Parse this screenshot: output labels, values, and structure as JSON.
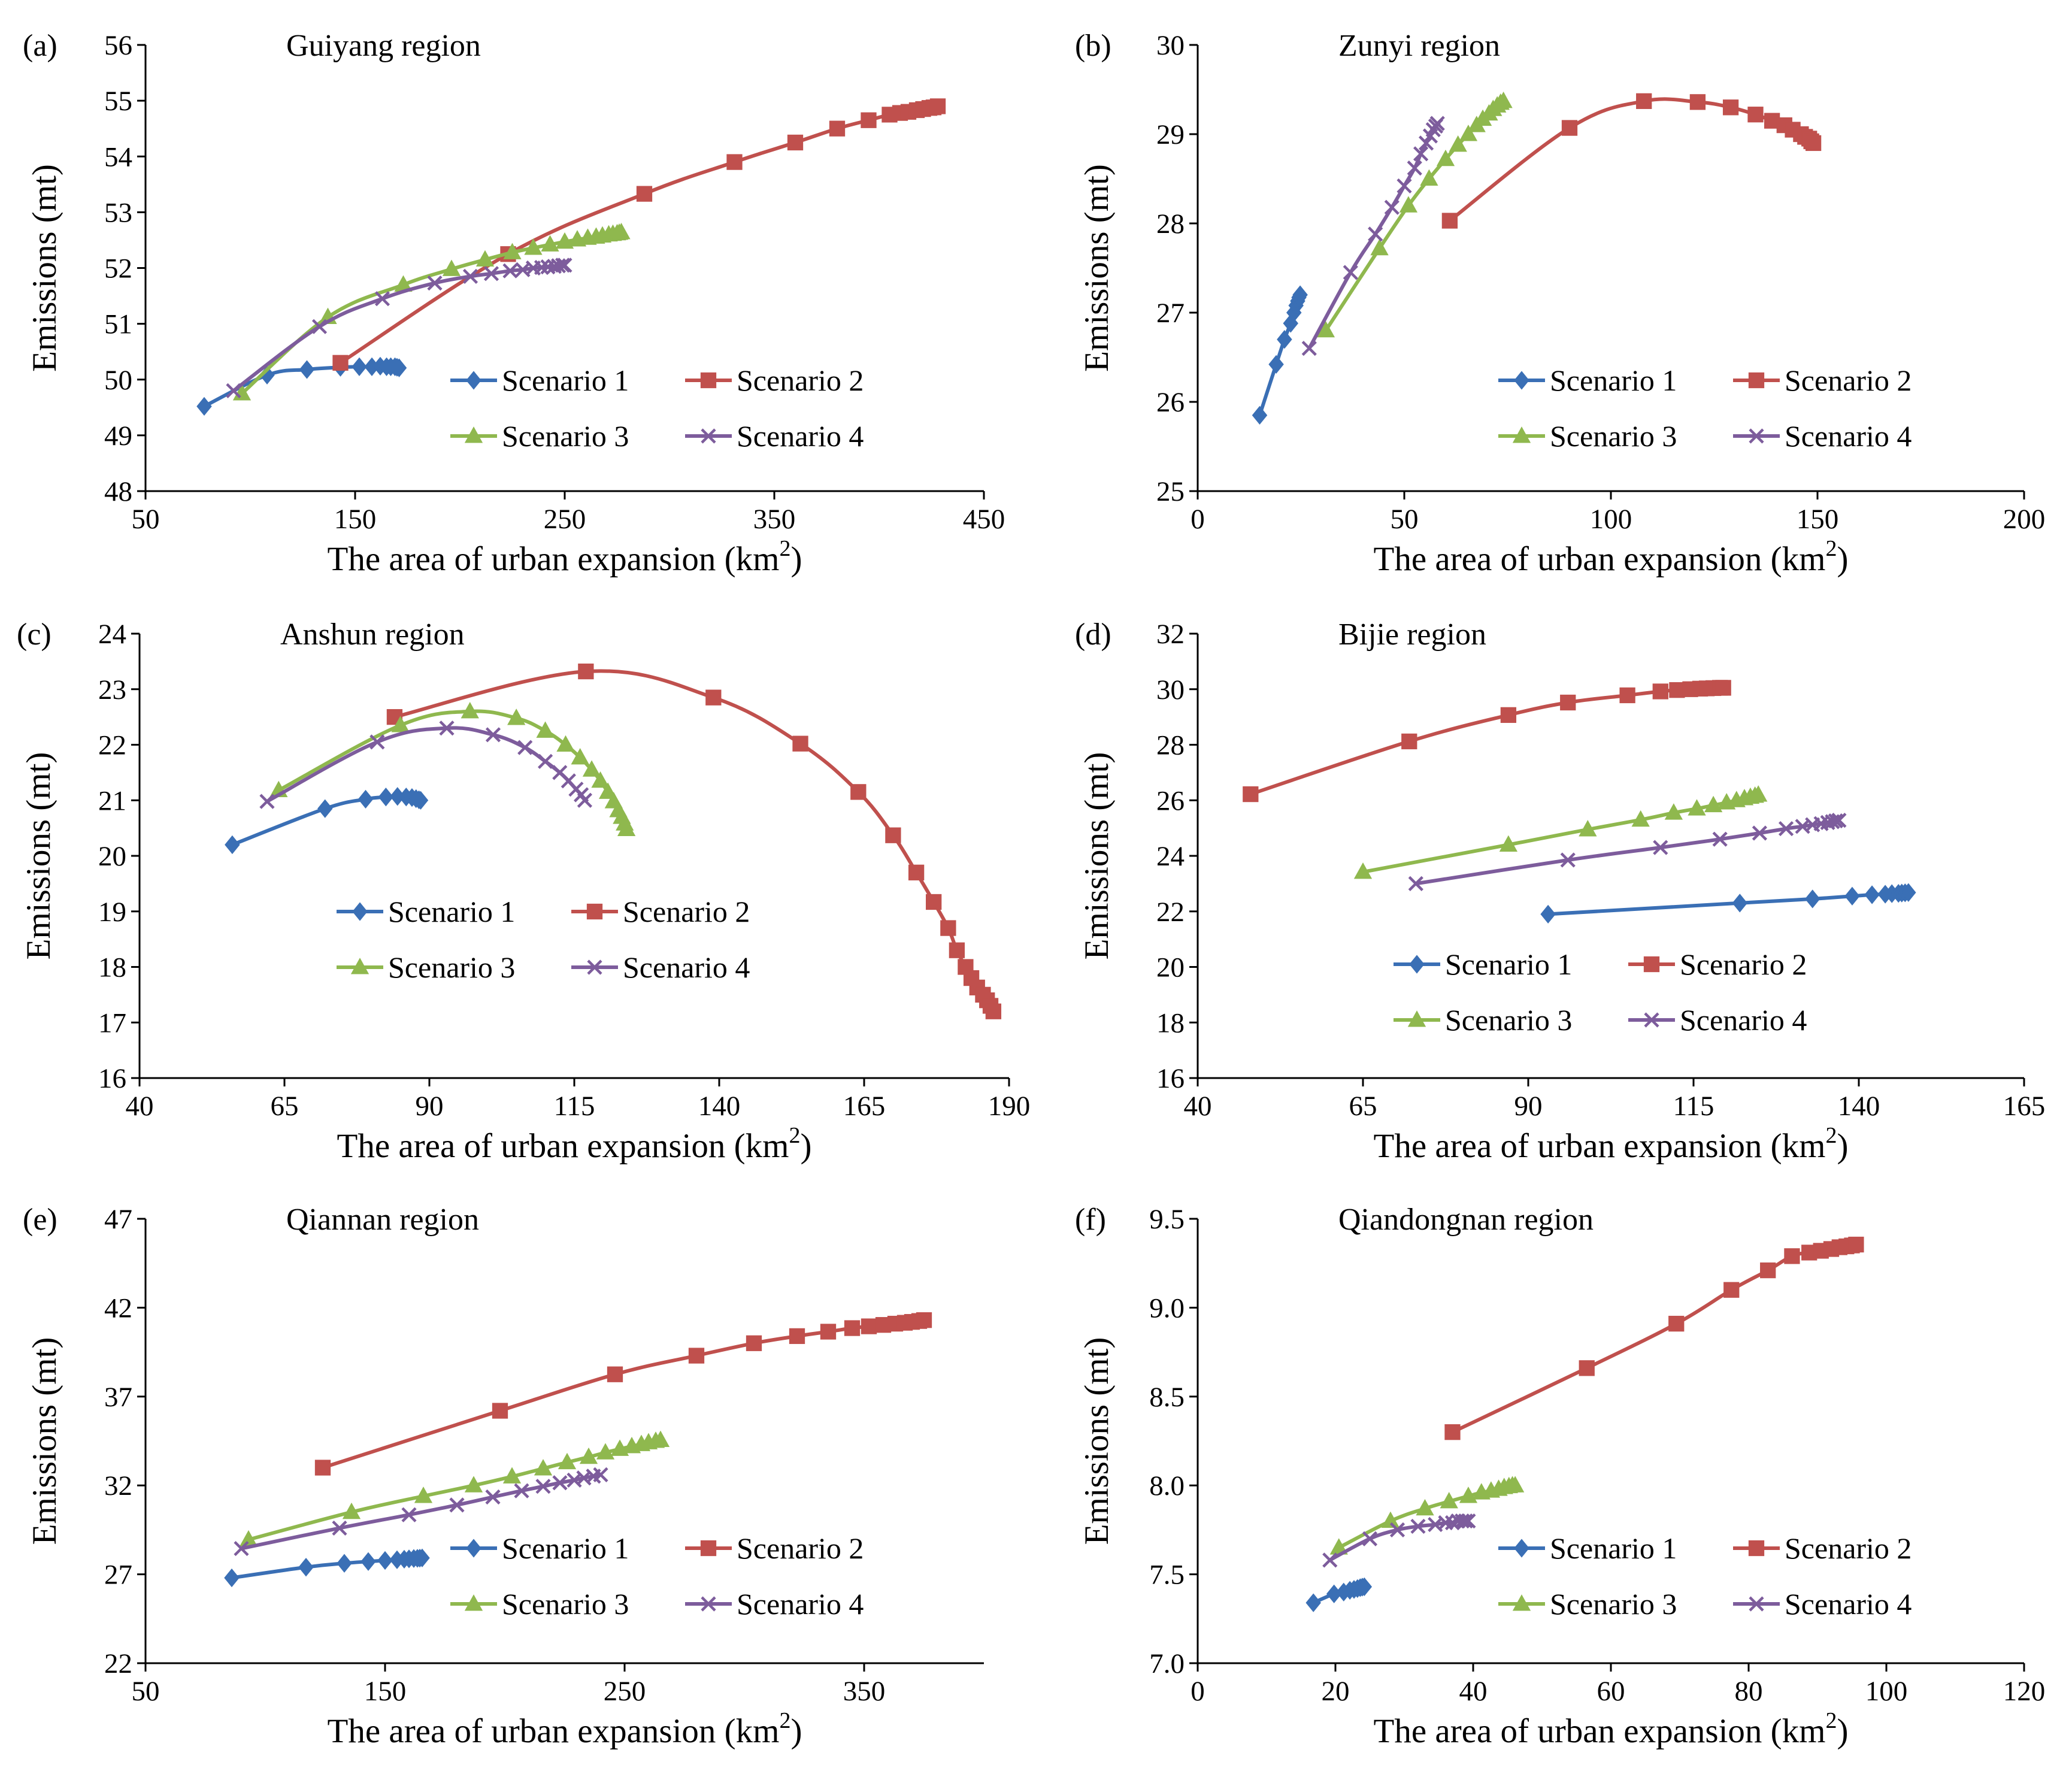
{
  "figure": {
    "colors": {
      "Scenario 1": "#3a6fb5",
      "Scenario 2": "#c0504d",
      "Scenario 3": "#8fb84e",
      "Scenario 4": "#7d5c9c"
    },
    "markers": {
      "Scenario 1": "diamond",
      "Scenario 2": "square",
      "Scenario 3": "triangle",
      "Scenario 4": "x"
    }
  },
  "chart_data": [
    {
      "type": "line",
      "panel_label": "(a)",
      "title": "Guiyang region",
      "xlabel": "The area of urban expansion  (km",
      "xlabel_sup": "2",
      "xlabel_end": ")",
      "ylabel": "Emissions (mt)",
      "xlim": [
        50,
        450
      ],
      "ylim": [
        48,
        56
      ],
      "xticks": [
        50,
        150,
        250,
        350,
        450
      ],
      "xtick_labels": [
        "50",
        "150",
        "250",
        "350",
        "450"
      ],
      "yticks": [
        48,
        49,
        50,
        51,
        52,
        53,
        54,
        55,
        56
      ],
      "ytick_labels": [
        "48",
        "49",
        "50",
        "51",
        "52",
        "53",
        "54",
        "55",
        "56"
      ],
      "legend": [
        "Scenario 1",
        "Scenario 2",
        "Scenario 3",
        "Scenario 4"
      ],
      "series": [
        {
          "name": "Scenario 1",
          "x": [
            78,
            108,
            127,
            143,
            152,
            158,
            162,
            165,
            167,
            169,
            170,
            171
          ],
          "y": [
            49.52,
            50.08,
            50.18,
            50.22,
            50.23,
            50.23,
            50.24,
            50.23,
            50.23,
            50.23,
            50.22,
            50.21
          ]
        },
        {
          "name": "Scenario 2",
          "x": [
            143,
            223,
            288,
            331,
            360,
            380,
            395,
            405,
            410,
            414,
            418,
            421,
            424,
            426,
            428
          ],
          "y": [
            50.3,
            52.25,
            53.33,
            53.9,
            54.25,
            54.5,
            54.65,
            54.75,
            54.78,
            54.8,
            54.83,
            54.85,
            54.87,
            54.88,
            54.9
          ]
        },
        {
          "name": "Scenario 3",
          "x": [
            96,
            137,
            173,
            196,
            212,
            225,
            235,
            243,
            250,
            256,
            261,
            265,
            268,
            271,
            273,
            275,
            276,
            277
          ],
          "y": [
            49.75,
            51.12,
            51.7,
            51.98,
            52.15,
            52.28,
            52.36,
            52.42,
            52.47,
            52.51,
            52.54,
            52.56,
            52.58,
            52.6,
            52.61,
            52.62,
            52.63,
            52.64
          ]
        },
        {
          "name": "Scenario 4",
          "x": [
            92,
            133,
            163,
            188,
            205,
            215,
            224,
            230,
            235,
            239,
            242,
            245,
            247,
            249,
            250
          ],
          "y": [
            49.8,
            50.95,
            51.45,
            51.73,
            51.85,
            51.9,
            51.95,
            51.97,
            52.0,
            52.01,
            52.02,
            52.03,
            52.04,
            52.05,
            52.05
          ]
        }
      ]
    },
    {
      "type": "line",
      "panel_label": "(b)",
      "title": "Zunyi region",
      "xlabel": "The area of urban expansion  (km",
      "xlabel_sup": "2",
      "xlabel_end": ")",
      "ylabel": "Emissions (mt)",
      "xlim": [
        0,
        200
      ],
      "ylim": [
        25,
        30
      ],
      "xticks": [
        0,
        50,
        100,
        150,
        200
      ],
      "xtick_labels": [
        "0",
        "50",
        "100",
        "150",
        "200"
      ],
      "yticks": [
        25,
        26,
        27,
        28,
        29,
        30
      ],
      "ytick_labels": [
        "25",
        "26",
        "27",
        "28",
        "29",
        "30"
      ],
      "legend": [
        "Scenario 1",
        "Scenario 2",
        "Scenario 3",
        "Scenario 4"
      ],
      "series": [
        {
          "name": "Scenario 1",
          "x": [
            15,
            19,
            21,
            22.5,
            23.3,
            23.8,
            24.2,
            24.5,
            24.8
          ],
          "y": [
            25.85,
            26.42,
            26.7,
            26.88,
            27.0,
            27.08,
            27.13,
            27.17,
            27.2
          ]
        },
        {
          "name": "Scenario 2",
          "x": [
            61,
            90,
            108,
            121,
            129,
            135,
            139,
            142,
            144,
            146,
            147,
            148,
            148.5,
            149
          ],
          "y": [
            28.03,
            29.07,
            29.37,
            29.36,
            29.3,
            29.22,
            29.15,
            29.1,
            29.05,
            29.0,
            28.97,
            28.95,
            28.92,
            28.9
          ]
        },
        {
          "name": "Scenario 3",
          "x": [
            31,
            44,
            51,
            56,
            60,
            63,
            65.5,
            67.5,
            69,
            70.5,
            71.5,
            72.5,
            73.3,
            74
          ],
          "y": [
            26.8,
            27.72,
            28.2,
            28.5,
            28.72,
            28.88,
            29.0,
            29.1,
            29.17,
            29.23,
            29.28,
            29.32,
            29.35,
            29.37
          ]
        },
        {
          "name": "Scenario 4",
          "x": [
            27,
            37,
            43,
            47,
            50,
            52.5,
            54,
            55.3,
            56.3,
            57,
            57.6,
            58
          ],
          "y": [
            26.6,
            27.45,
            27.88,
            28.18,
            28.42,
            28.62,
            28.78,
            28.9,
            28.98,
            29.05,
            29.09,
            29.12
          ]
        }
      ]
    },
    {
      "type": "line",
      "panel_label": "(c)",
      "title": "Anshun region",
      "xlabel": "The area of urban expansion  (km",
      "xlabel_sup": "2",
      "xlabel_end": ")",
      "ylabel": "Emissions (mt)",
      "xlim": [
        40,
        190
      ],
      "ylim": [
        16,
        24
      ],
      "xticks": [
        40,
        65,
        90,
        115,
        140,
        165,
        190
      ],
      "xtick_labels": [
        "40",
        "65",
        "90",
        "115",
        "140",
        "165",
        "190"
      ],
      "yticks": [
        16,
        17,
        18,
        19,
        20,
        21,
        22,
        23,
        24
      ],
      "ytick_labels": [
        "16",
        "17",
        "18",
        "19",
        "20",
        "21",
        "22",
        "23",
        "24"
      ],
      "legend": [
        "Scenario 1",
        "Scenario 2",
        "Scenario 3",
        "Scenario 4"
      ],
      "series": [
        {
          "name": "Scenario 1",
          "x": [
            56,
            72,
            79,
            82.5,
            84.5,
            86,
            87,
            87.7,
            88.2,
            88.5
          ],
          "y": [
            20.2,
            20.85,
            21.02,
            21.06,
            21.07,
            21.06,
            21.05,
            21.03,
            21.01,
            21.0
          ]
        },
        {
          "name": "Scenario 2",
          "x": [
            84,
            117,
            139,
            154,
            164,
            170,
            174,
            177,
            179.5,
            181,
            182.5,
            183.5,
            184.5,
            185.5,
            186.2,
            186.8,
            187.3
          ],
          "y": [
            22.5,
            23.32,
            22.85,
            22.02,
            21.15,
            20.37,
            19.7,
            19.17,
            18.7,
            18.3,
            18.0,
            17.8,
            17.63,
            17.5,
            17.4,
            17.3,
            17.2
          ]
        },
        {
          "name": "Scenario 3",
          "x": [
            64,
            85,
            97,
            105,
            110,
            113.5,
            116,
            118,
            119.5,
            120.8,
            121.8,
            122.6,
            123.2,
            123.7,
            124
          ],
          "y": [
            21.18,
            22.35,
            22.6,
            22.48,
            22.25,
            22.0,
            21.77,
            21.55,
            21.35,
            21.15,
            20.98,
            20.82,
            20.7,
            20.58,
            20.48
          ]
        },
        {
          "name": "Scenario 4",
          "x": [
            62,
            81,
            93,
            101,
            106.5,
            110,
            112.5,
            114,
            115.3,
            116.2,
            116.8
          ],
          "y": [
            20.98,
            22.05,
            22.3,
            22.18,
            21.95,
            21.7,
            21.5,
            21.35,
            21.2,
            21.1,
            21.0
          ]
        }
      ]
    },
    {
      "type": "line",
      "panel_label": "(d)",
      "title": "Bijie region",
      "xlabel": "The area of urban expansion  (km",
      "xlabel_sup": "2",
      "xlabel_end": ")",
      "ylabel": "Emissions (mt)",
      "xlim": [
        40,
        165
      ],
      "ylim": [
        16,
        32
      ],
      "xticks": [
        40,
        65,
        90,
        115,
        140,
        165
      ],
      "xtick_labels": [
        "40",
        "65",
        "90",
        "115",
        "140",
        "165"
      ],
      "yticks": [
        16,
        18,
        20,
        22,
        24,
        26,
        28,
        30,
        32
      ],
      "ytick_labels": [
        "16",
        "18",
        "20",
        "22",
        "24",
        "26",
        "28",
        "30",
        "32"
      ],
      "legend": [
        "Scenario 1",
        "Scenario 2",
        "Scenario 3",
        "Scenario 4"
      ],
      "series": [
        {
          "name": "Scenario 1",
          "x": [
            93,
            122,
            133,
            139,
            142,
            144,
            145,
            146,
            146.5,
            147,
            147.5
          ],
          "y": [
            21.9,
            22.3,
            22.45,
            22.55,
            22.6,
            22.62,
            22.64,
            22.65,
            22.66,
            22.67,
            22.68
          ]
        },
        {
          "name": "Scenario 2",
          "x": [
            48,
            72,
            87,
            96,
            105,
            110,
            112.5,
            114.5,
            116,
            117,
            118,
            119,
            119.5
          ],
          "y": [
            26.22,
            28.12,
            29.07,
            29.52,
            29.78,
            29.92,
            29.97,
            30.0,
            30.02,
            30.03,
            30.04,
            30.05,
            30.05
          ]
        },
        {
          "name": "Scenario 3",
          "x": [
            65,
            87,
            99,
            107,
            112,
            115.5,
            118,
            120,
            121.5,
            122.7,
            123.6,
            124.3,
            124.8
          ],
          "y": [
            23.42,
            24.4,
            24.95,
            25.3,
            25.55,
            25.7,
            25.82,
            25.92,
            26.0,
            26.07,
            26.12,
            26.16,
            26.2
          ]
        },
        {
          "name": "Scenario 4",
          "x": [
            73,
            96,
            110,
            119,
            125,
            129,
            131.5,
            133,
            134.3,
            135.3,
            136,
            136.5,
            137
          ],
          "y": [
            23.0,
            23.85,
            24.3,
            24.6,
            24.82,
            24.98,
            25.06,
            25.12,
            25.16,
            25.2,
            25.23,
            25.26,
            25.28
          ]
        }
      ]
    },
    {
      "type": "line",
      "panel_label": "(e)",
      "title": "Qiannan region",
      "xlabel": "The area of urban expansion  (km",
      "xlabel_sup": "2",
      "xlabel_end": ")",
      "ylabel": "Emissions (mt)",
      "xlim": [
        50,
        400
      ],
      "ylim": [
        22,
        47
      ],
      "xticks": [
        50,
        150,
        250,
        350
      ],
      "xtick_labels": [
        "50",
        "150",
        "250",
        "350"
      ],
      "yticks": [
        22,
        27,
        32,
        37,
        42,
        47
      ],
      "ytick_labels": [
        "22",
        "27",
        "32",
        "37",
        "42",
        "47"
      ],
      "legend": [
        "Scenario 1",
        "Scenario 2",
        "Scenario 3",
        "Scenario 4"
      ],
      "series": [
        {
          "name": "Scenario 1",
          "x": [
            86,
            117,
            133,
            143,
            150,
            155,
            158,
            160,
            162,
            163.5,
            164.5,
            165.5
          ],
          "y": [
            26.8,
            27.4,
            27.62,
            27.72,
            27.78,
            27.82,
            27.85,
            27.87,
            27.89,
            27.9,
            27.91,
            27.92
          ]
        },
        {
          "name": "Scenario 2",
          "x": [
            124,
            198,
            246,
            280,
            304,
            322,
            335,
            345,
            352,
            358,
            363,
            367,
            370,
            373,
            375
          ],
          "y": [
            33.0,
            36.2,
            38.25,
            39.3,
            40.0,
            40.4,
            40.65,
            40.85,
            40.95,
            41.03,
            41.1,
            41.15,
            41.2,
            41.25,
            41.3
          ]
        },
        {
          "name": "Scenario 3",
          "x": [
            93,
            136,
            166,
            187,
            203,
            216,
            226,
            235,
            242,
            248,
            253,
            257,
            260,
            263,
            265
          ],
          "y": [
            28.95,
            30.5,
            31.4,
            32.0,
            32.5,
            32.95,
            33.3,
            33.6,
            33.85,
            34.05,
            34.2,
            34.32,
            34.42,
            34.5,
            34.55
          ]
        },
        {
          "name": "Scenario 4",
          "x": [
            90,
            131,
            160,
            180,
            195,
            207,
            216,
            223,
            229,
            233,
            237,
            240
          ],
          "y": [
            28.45,
            29.6,
            30.35,
            30.9,
            31.35,
            31.7,
            31.95,
            32.15,
            32.3,
            32.42,
            32.52,
            32.6
          ]
        }
      ]
    },
    {
      "type": "line",
      "panel_label": "(f)",
      "title": "Qiandongnan region",
      "xlabel": "The area of urban expansion  (km",
      "xlabel_sup": "2",
      "xlabel_end": ")",
      "ylabel": "Emissions (mt)",
      "xlim": [
        0,
        120
      ],
      "ylim": [
        7.0,
        9.5
      ],
      "xticks": [
        0,
        20,
        40,
        60,
        80,
        100,
        120
      ],
      "xtick_labels": [
        "0",
        "20",
        "40",
        "60",
        "80",
        "100",
        "120"
      ],
      "yticks": [
        7.0,
        7.5,
        8.0,
        8.5,
        9.0,
        9.5
      ],
      "ytick_labels": [
        "7.0",
        "7.5",
        "8.0",
        "8.5",
        "9.0",
        "9.5"
      ],
      "legend": [
        "Scenario 1",
        "Scenario 2",
        "Scenario 3",
        "Scenario 4"
      ],
      "series": [
        {
          "name": "Scenario 1",
          "x": [
            16.8,
            19.8,
            21.2,
            22.1,
            22.7,
            23.2,
            23.6,
            23.9,
            24.2
          ],
          "y": [
            7.34,
            7.39,
            7.4,
            7.41,
            7.415,
            7.42,
            7.425,
            7.428,
            7.43
          ]
        },
        {
          "name": "Scenario 2",
          "x": [
            37,
            56.5,
            69.5,
            77.5,
            82.8,
            86.3,
            88.8,
            90.5,
            92,
            93.2,
            94.2,
            95,
            95.6
          ],
          "y": [
            8.3,
            8.66,
            8.91,
            9.1,
            9.21,
            9.29,
            9.31,
            9.32,
            9.33,
            9.34,
            9.345,
            9.35,
            9.355
          ]
        },
        {
          "name": "Scenario 3",
          "x": [
            20.5,
            28,
            33,
            36.5,
            39.3,
            41.2,
            42.6,
            43.7,
            44.5,
            45.2,
            45.7,
            46.1
          ],
          "y": [
            7.65,
            7.8,
            7.87,
            7.91,
            7.94,
            7.96,
            7.97,
            7.98,
            7.99,
            7.995,
            8.0,
            8.0
          ]
        },
        {
          "name": "Scenario 4",
          "x": [
            19.2,
            25,
            29,
            32,
            34.5,
            36,
            37,
            37.8,
            38.4,
            38.9,
            39.3
          ],
          "y": [
            7.58,
            7.7,
            7.75,
            7.77,
            7.78,
            7.79,
            7.79,
            7.8,
            7.8,
            7.8,
            7.8
          ]
        }
      ]
    }
  ]
}
